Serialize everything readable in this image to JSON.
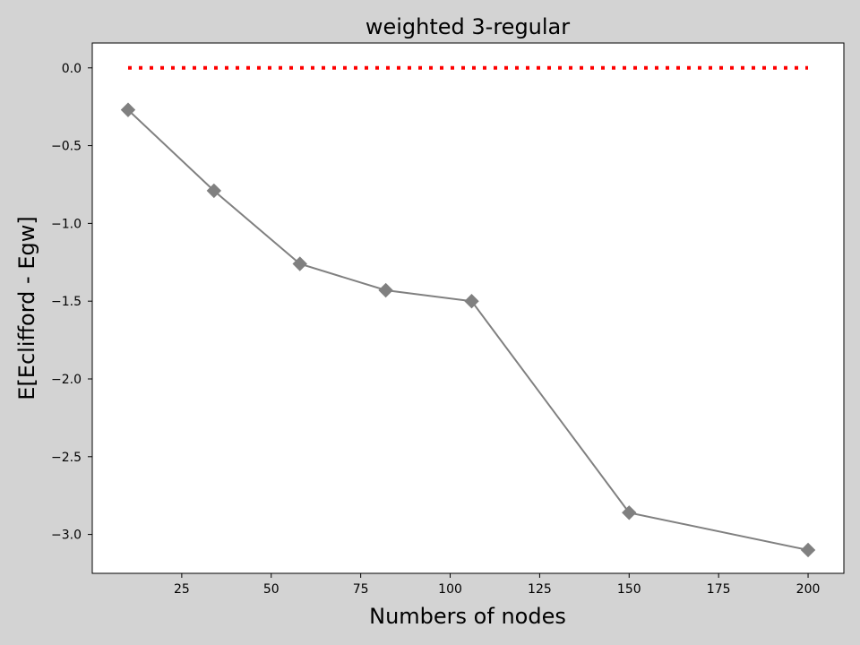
{
  "chart_data": {
    "type": "line",
    "title": "weighted 3-regular",
    "xlabel": "Numbers of nodes",
    "ylabel": "E[Eclifford - Egw]",
    "xlim": [
      0,
      210
    ],
    "ylim": [
      -3.25,
      0.16
    ],
    "xticks": [
      25,
      50,
      75,
      100,
      125,
      150,
      175,
      200
    ],
    "xtick_labels": [
      "25",
      "50",
      "75",
      "100",
      "125",
      "150",
      "175",
      "200"
    ],
    "yticks": [
      0.0,
      -0.5,
      -1.0,
      -1.5,
      -2.0,
      -2.5,
      -3.0
    ],
    "ytick_labels": [
      "0.0",
      "−0.5",
      "−1.0",
      "−1.5",
      "−2.0",
      "−2.5",
      "−3.0"
    ],
    "grid": false,
    "series": [
      {
        "style": "solid",
        "marker": "diamond",
        "color": "#808080",
        "x": [
          10,
          34,
          58,
          82,
          106,
          150,
          200
        ],
        "y": [
          -0.27,
          -0.79,
          -1.26,
          -1.43,
          -1.5,
          -2.86,
          -3.1
        ]
      },
      {
        "style": "dotted",
        "marker": "none",
        "color": "#ff0000",
        "x": [
          10,
          200
        ],
        "y": [
          0.0,
          0.0
        ]
      }
    ]
  }
}
